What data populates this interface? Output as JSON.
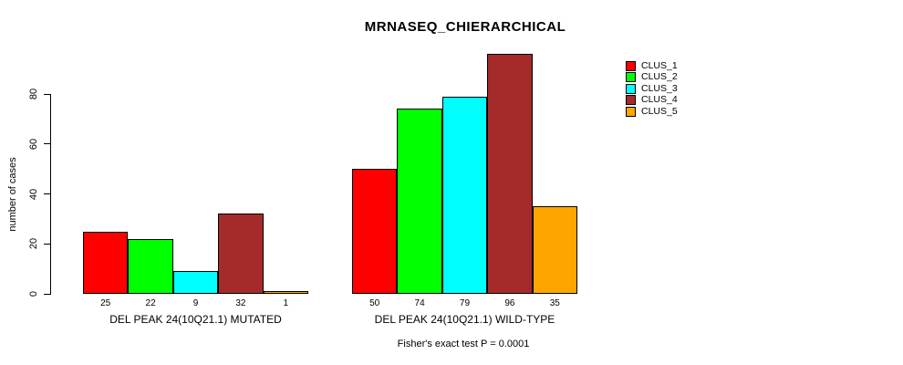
{
  "title": "MRNASEQ_CHIERARCHICAL",
  "footer": "Fisher's exact test P = 0.0001",
  "chart_data": {
    "type": "bar",
    "title": "MRNASEQ_CHIERARCHICAL",
    "xlabel": "",
    "ylabel": "number of cases",
    "ylim": [
      0,
      80
    ],
    "yticks": [
      0,
      20,
      40,
      60,
      80
    ],
    "grid": false,
    "legend_position": "top-right",
    "categories": [
      "DEL PEAK 24(10Q21.1) MUTATED",
      "DEL PEAK 24(10Q21.1) WILD-TYPE"
    ],
    "series": [
      {
        "name": "CLUS_1",
        "color": "#FF0000",
        "values": [
          25,
          50
        ]
      },
      {
        "name": "CLUS_2",
        "color": "#00FF00",
        "values": [
          22,
          74
        ]
      },
      {
        "name": "CLUS_3",
        "color": "#00FFFF",
        "values": [
          9,
          79
        ]
      },
      {
        "name": "CLUS_4",
        "color": "#A52A2A",
        "values": [
          32,
          96
        ]
      },
      {
        "name": "CLUS_5",
        "color": "#FFA500",
        "values": [
          1,
          35
        ]
      }
    ],
    "bar_value_labels_shown": true,
    "annotation": "Fisher's exact test P = 0.0001"
  }
}
